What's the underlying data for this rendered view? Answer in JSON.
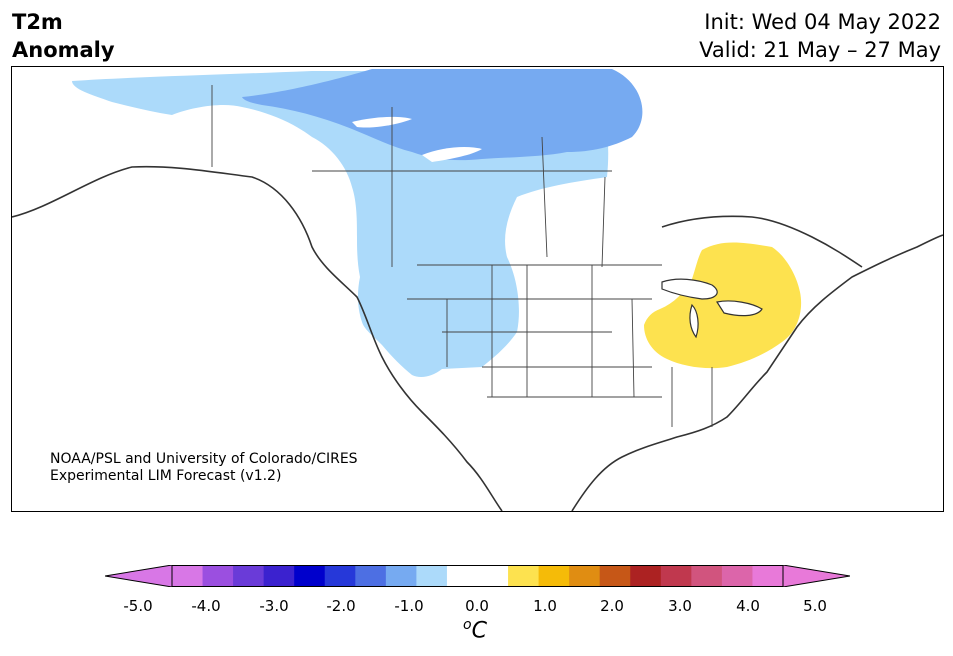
{
  "header": {
    "variable": "T2m",
    "quantity": "Anomaly",
    "init": "Init: Wed 04 May 2022",
    "valid": "Valid: 21 May – 27 May"
  },
  "credit": {
    "line1": "NOAA/PSL and University of Colorado/CIRES",
    "line2": "Experimental LIM Forecast (v1.2)"
  },
  "colorbar": {
    "unit_base": "C",
    "unit_prefix": "o",
    "ticks": [
      "-5.0",
      "-4.0",
      "-3.0",
      "-2.0",
      "-1.0",
      "0.0",
      "1.0",
      "2.0",
      "3.0",
      "4.0",
      "5.0"
    ],
    "colors": [
      "#d877e6",
      "#9b4fe0",
      "#6a3bd8",
      "#3b22cf",
      "#0000cc",
      "#2638d9",
      "#4d6fe3",
      "#76aaf1",
      "#acdafa",
      "#ffffff",
      "#ffffff",
      "#fde24f",
      "#f5bb08",
      "#e08d12",
      "#c65717",
      "#ac2222",
      "#c0384e",
      "#d1547e",
      "#dc65aa",
      "#e879d9"
    ],
    "under_color": "#d877e6",
    "over_color": "#e879d9"
  },
  "map_fill_colors": {
    "light_blue": "#acdafa",
    "medium_blue": "#76aaf1",
    "yellow": "#fde24f"
  }
}
